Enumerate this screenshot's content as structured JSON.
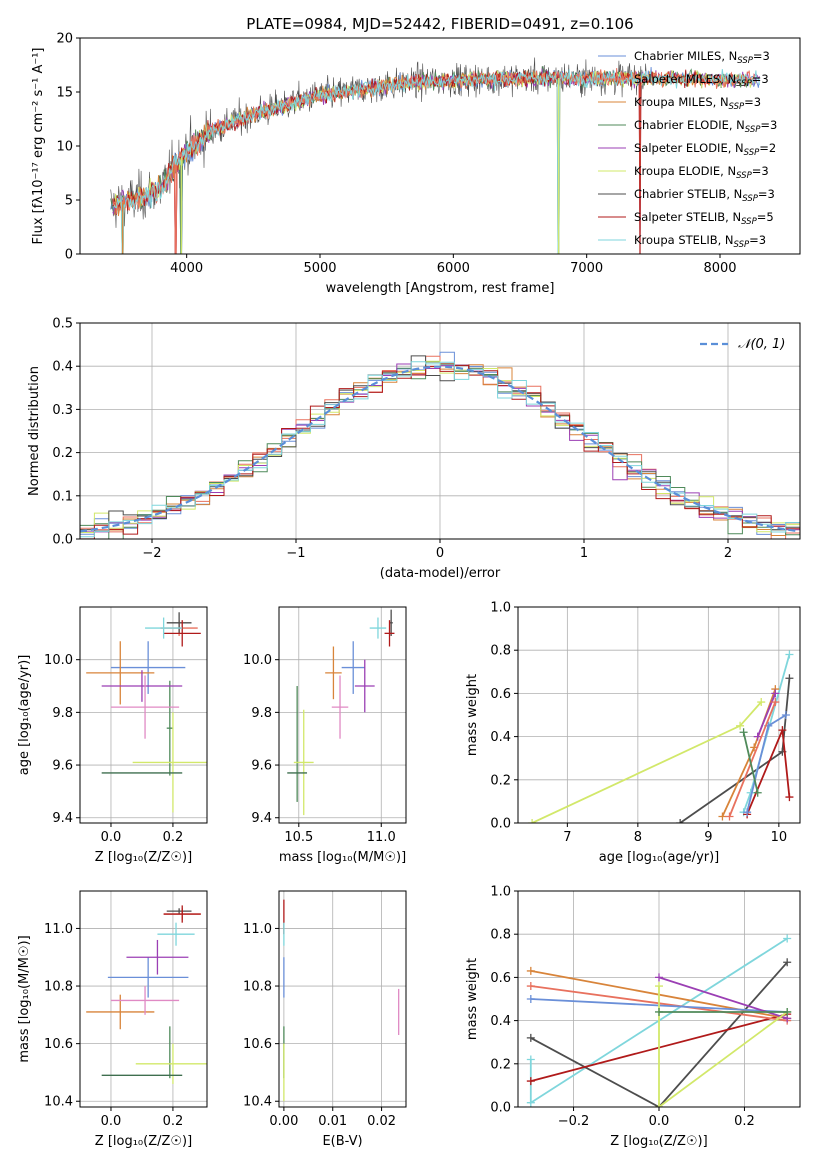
{
  "colors": {
    "Chabrier MILES": "#6a8fd8",
    "Salpeter MILES": "#e8715e",
    "Kroupa MILES": "#d8843a",
    "Chabrier ELODIE": "#4f8a5a",
    "Salpeter ELODIE": "#9b3fb4",
    "Kroupa ELODIE": "#d2e86a",
    "Chabrier STELIB": "#4d4d4d",
    "Salpeter STELIB": "#b01a1a",
    "Kroupa STELIB": "#7fd6dc",
    "Normal": "#5a8fd8"
  },
  "chart_data": [
    {
      "id": "spectrum",
      "type": "line",
      "title": "PLATE=0984, MJD=52442, FIBERID=0491, z=0.106",
      "xlabel": "wavelength [Angstrom, rest frame]",
      "ylabel": "Flux [fλ10⁻¹⁷ erg cm⁻² s⁻¹ A⁻¹]",
      "xlim": [
        3200,
        8600
      ],
      "ylim": [
        0,
        20
      ],
      "xticks": [
        4000,
        5000,
        6000,
        7000,
        8000
      ],
      "yticks": [
        0,
        5,
        10,
        15,
        20
      ],
      "grid": false,
      "legend_position": "top-right",
      "legend": [
        "Chabrier MILES, N_SSP=3",
        "Salpeter MILES, N_SSP=3",
        "Kroupa MILES, N_SSP=3",
        "Chabrier ELODIE, N_SSP=3",
        "Salpeter ELODIE, N_SSP=2",
        "Kroupa ELODIE, N_SSP=3",
        "Chabrier STELIB, N_SSP=3",
        "Salpeter STELIB, N_SSP=5",
        "Kroupa STELIB, N_SSP=3"
      ],
      "continuum": {
        "wavelength": [
          3450,
          3600,
          3800,
          3900,
          4000,
          4100,
          4200,
          4400,
          4600,
          4800,
          5000,
          5200,
          5500,
          5800,
          6000,
          6300,
          6600,
          7000,
          7400,
          7800,
          8300
        ],
        "flux": [
          4.5,
          5.0,
          6.0,
          8.0,
          9.5,
          10.5,
          11.5,
          12.5,
          13.3,
          14.0,
          14.7,
          15.0,
          15.6,
          16.0,
          16.1,
          16.2,
          16.3,
          16.3,
          16.3,
          16.2,
          16.1
        ]
      },
      "dips": [
        {
          "wavelength": 3520,
          "flux": 0
        },
        {
          "wavelength": 3920,
          "flux": 0
        },
        {
          "wavelength": 3960,
          "flux": 0
        },
        {
          "wavelength": 6790,
          "flux": 0
        },
        {
          "wavelength": 7400,
          "flux": 0
        }
      ]
    },
    {
      "id": "residuals",
      "type": "histogram",
      "xlabel": "(data-model)/error",
      "ylabel": "Normed distribution",
      "xlim": [
        -2.5,
        2.5
      ],
      "ylim": [
        0,
        0.5
      ],
      "xticks": [
        -2,
        -1,
        0,
        1,
        2
      ],
      "yticks": [
        0.0,
        0.1,
        0.2,
        0.3,
        0.4,
        0.5
      ],
      "grid": true,
      "bin_width": 0.1,
      "legend_position": "top-right",
      "normal_label": "𝒩(0, 1)"
    },
    {
      "id": "age-vs-Z",
      "type": "errorbar",
      "xlabel": "Z [log₁₀(Z/Z☉)]",
      "ylabel": "age  [log₁₀(age/yr)]",
      "xlim": [
        -0.1,
        0.31
      ],
      "ylim": [
        9.38,
        10.2
      ],
      "xticks": [
        0.0,
        0.2
      ],
      "yticks": [
        9.4,
        9.6,
        9.8,
        10.0
      ],
      "grid": true,
      "points": [
        {
          "model": "Chabrier MILES",
          "x": 0.12,
          "xerr": 0.12,
          "y": 9.97,
          "yerr": 0.1
        },
        {
          "model": "Salpeter MILES",
          "x": 0.22,
          "xerr": 0.06,
          "y": 10.12,
          "yerr": 0.03
        },
        {
          "model": "Kroupa MILES",
          "x": 0.03,
          "xerr": 0.11,
          "y": 9.95,
          "yerr": 0.12
        },
        {
          "model": "Chabrier ELODIE",
          "x": 0.19,
          "xerr": 0.01,
          "y": 9.74,
          "yerr": 0.18
        },
        {
          "model": "Salpeter ELODIE",
          "x": 0.1,
          "xerr": 0.13,
          "y": 9.9,
          "yerr": 0.06
        },
        {
          "model": "Kroupa ELODIE",
          "x": 0.2,
          "xerr": 0.13,
          "y": 9.61,
          "yerr": 0.19
        },
        {
          "model": "Chabrier STELIB",
          "x": 0.22,
          "xerr": 0.04,
          "y": 10.14,
          "yerr": 0.04
        },
        {
          "model": "Salpeter STELIB",
          "x": 0.23,
          "xerr": 0.06,
          "y": 10.1,
          "yerr": 0.05
        },
        {
          "model": "Kroupa STELIB",
          "x": 0.17,
          "xerr": 0.06,
          "y": 10.12,
          "yerr": 0.04
        },
        {
          "model": "Pink",
          "x": 0.11,
          "xerr": 0.11,
          "y": 9.82,
          "yerr": 0.12
        },
        {
          "model": "Dark green",
          "x": 0.1,
          "xerr": 0.13,
          "y": 9.57,
          "yerr": 0.0
        }
      ]
    },
    {
      "id": "age-vs-mass",
      "type": "errorbar",
      "xlabel": "mass [log₁₀(M/M☉)]",
      "ylabel": "",
      "xlim": [
        10.38,
        11.15
      ],
      "ylim": [
        9.38,
        10.2
      ],
      "xticks": [
        10.5,
        11.0
      ],
      "yticks": [
        9.4,
        9.6,
        9.8,
        10.0
      ],
      "grid": true,
      "points": [
        {
          "model": "Chabrier MILES",
          "x": 10.83,
          "xerr": 0.07,
          "y": 9.97,
          "yerr": 0.1
        },
        {
          "model": "Kroupa MILES",
          "x": 10.71,
          "xerr": 0.05,
          "y": 9.95,
          "yerr": 0.1
        },
        {
          "model": "Chabrier ELODIE",
          "x": 10.49,
          "xerr": 0.0,
          "y": 9.68,
          "yerr": 0.22
        },
        {
          "model": "Salpeter ELODIE",
          "x": 10.9,
          "xerr": 0.06,
          "y": 9.9,
          "yerr": 0.1
        },
        {
          "model": "Kroupa ELODIE",
          "x": 10.53,
          "xerr": 0.06,
          "y": 9.61,
          "yerr": 0.2
        },
        {
          "model": "Chabrier STELIB",
          "x": 11.06,
          "xerr": 0.01,
          "y": 10.14,
          "yerr": 0.05
        },
        {
          "model": "Salpeter STELIB",
          "x": 11.05,
          "xerr": 0.03,
          "y": 10.1,
          "yerr": 0.05
        },
        {
          "model": "Kroupa STELIB",
          "x": 10.98,
          "xerr": 0.05,
          "y": 10.12,
          "yerr": 0.04
        },
        {
          "model": "Pink",
          "x": 10.75,
          "xerr": 0.05,
          "y": 9.82,
          "yerr": 0.12
        },
        {
          "model": "Dark green",
          "x": 10.49,
          "xerr": 0.06,
          "y": 9.57,
          "yerr": 0.0
        }
      ]
    },
    {
      "id": "mass-weight-vs-age",
      "type": "line",
      "xlabel": "age  [log₁₀(age/yr)]",
      "ylabel": "mass weight",
      "xlim": [
        6.3,
        10.3
      ],
      "ylim": [
        0,
        1.0
      ],
      "xticks": [
        7,
        8,
        9,
        10
      ],
      "yticks": [
        0.0,
        0.2,
        0.4,
        0.6,
        0.8,
        1.0
      ],
      "grid": true,
      "series": [
        {
          "model": "Kroupa ELODIE",
          "x": [
            6.5,
            9.45,
            9.75
          ],
          "y": [
            0.0,
            0.45,
            0.56
          ]
        },
        {
          "model": "Chabrier STELIB",
          "x": [
            8.6,
            10.05,
            10.15
          ],
          "y": [
            0.0,
            0.33,
            0.67
          ]
        },
        {
          "model": "Kroupa STELIB",
          "x": [
            9.5,
            9.6,
            10.15
          ],
          "y": [
            0.05,
            0.14,
            0.78
          ]
        },
        {
          "model": "Salpeter STELIB",
          "x": [
            9.55,
            10.05,
            10.15
          ],
          "y": [
            0.04,
            0.43,
            0.12
          ]
        },
        {
          "model": "Kroupa MILES",
          "x": [
            9.2,
            9.65,
            9.95
          ],
          "y": [
            0.03,
            0.35,
            0.62
          ]
        },
        {
          "model": "Chabrier MILES",
          "x": [
            9.55,
            9.85,
            10.1
          ],
          "y": [
            0.05,
            0.45,
            0.5
          ]
        },
        {
          "model": "Salpeter ELODIE",
          "x": [
            9.7,
            9.95
          ],
          "y": [
            0.4,
            0.6
          ]
        },
        {
          "model": "Salpeter MILES",
          "x": [
            9.3,
            9.95
          ],
          "y": [
            0.03,
            0.56
          ]
        },
        {
          "model": "Chabrier ELODIE",
          "x": [
            9.5,
            9.7
          ],
          "y": [
            0.42,
            0.14
          ]
        }
      ]
    },
    {
      "id": "mass-vs-Z",
      "type": "errorbar",
      "xlabel": "Z [log₁₀(Z/Z☉)]",
      "ylabel": "mass [log₁₀(M/M☉)]",
      "xlim": [
        -0.1,
        0.31
      ],
      "ylim": [
        10.38,
        11.13
      ],
      "xticks": [
        0.0,
        0.2
      ],
      "yticks": [
        10.4,
        10.6,
        10.8,
        11.0
      ],
      "grid": true,
      "points": [
        {
          "model": "Chabrier MILES",
          "x": 0.12,
          "xerr": 0.13,
          "y": 10.83,
          "yerr": 0.07
        },
        {
          "model": "Salpeter MILES",
          "x": 0.23,
          "xerr": 0.06,
          "y": 11.05,
          "yerr": 0.02
        },
        {
          "model": "Kroupa MILES",
          "x": 0.03,
          "xerr": 0.11,
          "y": 10.71,
          "yerr": 0.06
        },
        {
          "model": "Chabrier ELODIE",
          "x": 0.19,
          "xerr": 0.0,
          "y": 10.57,
          "yerr": 0.09
        },
        {
          "model": "Salpeter ELODIE",
          "x": 0.15,
          "xerr": 0.1,
          "y": 10.9,
          "yerr": 0.06
        },
        {
          "model": "Kroupa ELODIE",
          "x": 0.2,
          "xerr": 0.12,
          "y": 10.53,
          "yerr": 0.07
        },
        {
          "model": "Chabrier STELIB",
          "x": 0.22,
          "xerr": 0.04,
          "y": 11.06,
          "yerr": 0.01
        },
        {
          "model": "Salpeter STELIB",
          "x": 0.23,
          "xerr": 0.06,
          "y": 11.05,
          "yerr": 0.03
        },
        {
          "model": "Kroupa STELIB",
          "x": 0.21,
          "xerr": 0.06,
          "y": 10.98,
          "yerr": 0.04
        },
        {
          "model": "Pink",
          "x": 0.11,
          "xerr": 0.11,
          "y": 10.75,
          "yerr": 0.05
        },
        {
          "model": "Dark green",
          "x": 0.1,
          "xerr": 0.13,
          "y": 10.49,
          "yerr": 0.0
        }
      ]
    },
    {
      "id": "mass-vs-EBV",
      "type": "errorbar",
      "xlabel": "E(B-V)",
      "ylabel": "",
      "xlim": [
        -0.001,
        0.025
      ],
      "ylim": [
        10.38,
        11.13
      ],
      "xticks": [
        0.0,
        0.01,
        0.02
      ],
      "yticks": [
        10.4,
        10.6,
        10.8,
        11.0
      ],
      "grid": true,
      "points": [
        {
          "model": "Salpeter STELIB",
          "x": 0.0,
          "xerr": 0.0,
          "y": 11.04,
          "yerr": 0.06
        },
        {
          "model": "Chabrier MILES",
          "x": 0.0,
          "xerr": 0.0,
          "y": 10.83,
          "yerr": 0.07
        },
        {
          "model": "Kroupa STELIB",
          "x": 0.0,
          "xerr": 0.0,
          "y": 10.98,
          "yerr": 0.04
        },
        {
          "model": "Chabrier ELODIE",
          "x": 0.0,
          "xerr": 0.0,
          "y": 10.57,
          "yerr": 0.09
        },
        {
          "model": "Kroupa ELODIE",
          "x": 0.0,
          "xerr": 0.0,
          "y": 10.5,
          "yerr": 0.1
        },
        {
          "model": "Pink",
          "x": 0.0235,
          "xerr": 0.0,
          "y": 10.71,
          "yerr": 0.08
        }
      ]
    },
    {
      "id": "mass-weight-vs-Z",
      "type": "line",
      "xlabel": "Z [log₁₀(Z/Z☉)]",
      "ylabel": "mass weight",
      "xlim": [
        -0.33,
        0.33
      ],
      "ylim": [
        0,
        1.0
      ],
      "xticks": [
        -0.2,
        0.0,
        0.2
      ],
      "yticks": [
        0.0,
        0.2,
        0.4,
        0.6,
        0.8,
        1.0
      ],
      "grid": true,
      "series": [
        {
          "model": "Kroupa STELIB",
          "x": [
            -0.3,
            -0.3,
            0.3
          ],
          "y": [
            0.22,
            0.02,
            0.78
          ]
        },
        {
          "model": "Chabrier STELIB",
          "x": [
            -0.3,
            0.0,
            0.3
          ],
          "y": [
            0.32,
            0.0,
            0.67
          ]
        },
        {
          "model": "Salpeter STELIB",
          "x": [
            -0.3,
            0.3
          ],
          "y": [
            0.12,
            0.43
          ]
        },
        {
          "model": "Kroupa MILES",
          "x": [
            -0.3,
            0.3
          ],
          "y": [
            0.63,
            0.41
          ]
        },
        {
          "model": "Salpeter MILES",
          "x": [
            -0.3,
            0.3
          ],
          "y": [
            0.56,
            0.4
          ]
        },
        {
          "model": "Chabrier MILES",
          "x": [
            -0.3,
            0.3
          ],
          "y": [
            0.5,
            0.44
          ]
        },
        {
          "model": "Salpeter ELODIE",
          "x": [
            0.0,
            0.3
          ],
          "y": [
            0.6,
            0.41
          ]
        },
        {
          "model": "Kroupa ELODIE",
          "x": [
            0.0,
            0.0,
            0.3
          ],
          "y": [
            0.56,
            0.0,
            0.44
          ]
        },
        {
          "model": "Chabrier ELODIE",
          "x": [
            0.0,
            0.3
          ],
          "y": [
            0.44,
            0.44
          ]
        }
      ]
    }
  ]
}
